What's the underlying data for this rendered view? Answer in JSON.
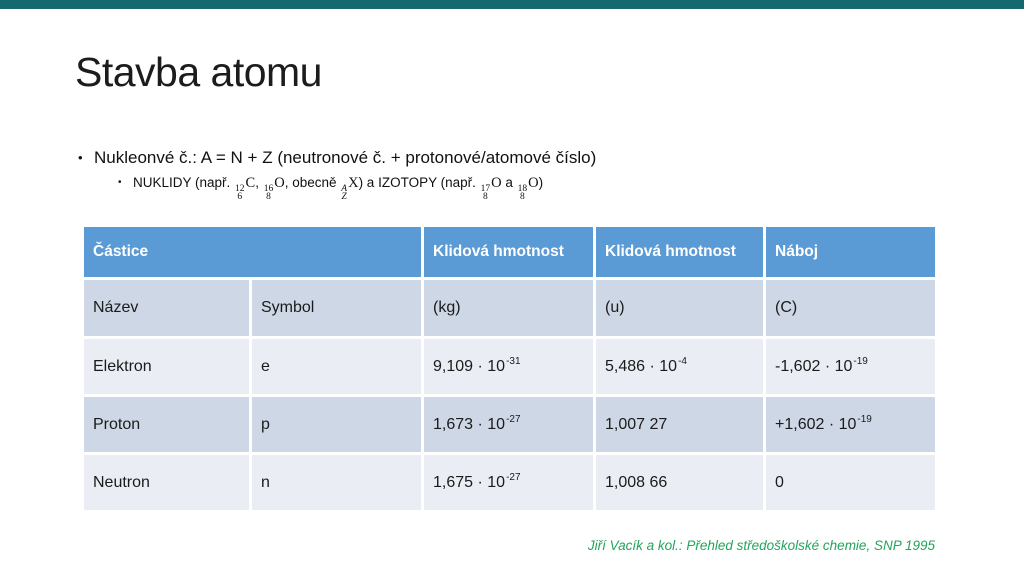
{
  "slide": {
    "title": "Stavba atomu",
    "bullet_char": "•",
    "accent_colors": {
      "top_bar_teal": "#15686d",
      "table_header_blue": "#5b9bd5",
      "row_band_medium": "#cdd7e6",
      "row_band_light": "#eaedf4",
      "citation_green": "#23a45b"
    }
  },
  "bullet": {
    "text": "Nukleonvé č.: A = N + Z (neutronové č. + protonové/atomové číslo)"
  },
  "sub_bullet": {
    "t1": "NUKLIDY (např. ",
    "n1": {
      "sup": "12",
      "sub": "6",
      "sym": "C"
    },
    "t2": ", ",
    "n2": {
      "sup": "16",
      "sub": "8",
      "sym": "O"
    },
    "t3": ", obecně ",
    "n3": {
      "sup": "A",
      "sub": "Z",
      "sym": "X"
    },
    "t4": ") a IZOTOPY (např. ",
    "n4": {
      "sup": "17",
      "sub": "8",
      "sym": "O"
    },
    "t5": " a ",
    "n5": {
      "sup": "18",
      "sub": "8",
      "sym": "O"
    },
    "t6": ")"
  },
  "table": {
    "header": {
      "particle": "Částice",
      "rest_mass_1": "Klidová hmotnost",
      "rest_mass_2": "Klidová hmotnost",
      "charge": "Náboj"
    },
    "subheader": {
      "name": "Název",
      "symbol": "Symbol",
      "kg": "(kg)",
      "u": "(u)",
      "c": "(C)"
    },
    "rows": [
      {
        "name": "Elektron",
        "symbol": "e",
        "mass_kg": {
          "base": "9,109 · 10",
          "exp": "-31"
        },
        "mass_u": {
          "base": "5,486 · 10",
          "exp": "-4"
        },
        "charge": {
          "base": "-1,602 · 10",
          "exp": "-19"
        }
      },
      {
        "name": "Proton",
        "symbol": "p",
        "mass_kg": {
          "base": "1,673 · 10",
          "exp": "-27"
        },
        "mass_u": {
          "base": "1,007 27",
          "exp": ""
        },
        "charge": {
          "base": "+1,602 · 10",
          "exp": "-19"
        }
      },
      {
        "name": "Neutron",
        "symbol": "n",
        "mass_kg": {
          "base": "1,675 · 10",
          "exp": "-27"
        },
        "mass_u": {
          "base": "1,008 66",
          "exp": ""
        },
        "charge": {
          "base": "0",
          "exp": ""
        }
      }
    ]
  },
  "citation": {
    "text": "Jiří Vacík a kol.: Přehled středoškolské chemie, SNP 1995"
  }
}
